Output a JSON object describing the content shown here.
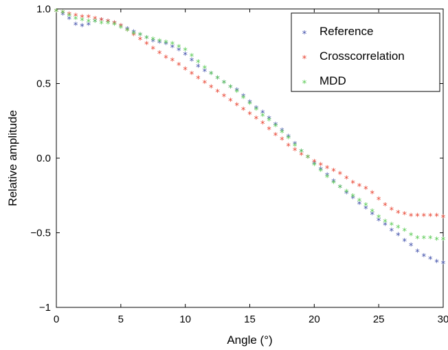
{
  "chart_data": {
    "type": "scatter",
    "title": "",
    "xlabel": "Angle (°)",
    "ylabel": "Relative amplitude",
    "xlim": [
      0,
      30
    ],
    "ylim": [
      -1,
      1
    ],
    "xticks": [
      0,
      5,
      10,
      15,
      20,
      25,
      30
    ],
    "yticks": [
      1.0,
      0.5,
      0.0,
      -0.5,
      -1
    ],
    "xtick_labels": [
      "0",
      "5",
      "10",
      "15",
      "20",
      "25",
      "30"
    ],
    "ytick_labels": [
      "1.0",
      "0.5",
      "0.0",
      "−0.5",
      "−1"
    ],
    "grid": false,
    "legend_position": "top-right",
    "marker": "*",
    "series": [
      {
        "name": "Reference",
        "color": "#3b4ba8",
        "points": [
          [
            0,
            1.0
          ],
          [
            0.5,
            0.98
          ],
          [
            1,
            0.95
          ],
          [
            1.5,
            0.91
          ],
          [
            2,
            0.9
          ],
          [
            2.5,
            0.91
          ],
          [
            3,
            0.93
          ],
          [
            3.5,
            0.94
          ],
          [
            4,
            0.93
          ],
          [
            4.5,
            0.92
          ],
          [
            5,
            0.9
          ],
          [
            5.5,
            0.88
          ],
          [
            6,
            0.86
          ],
          [
            6.5,
            0.84
          ],
          [
            7,
            0.82
          ],
          [
            7.5,
            0.8
          ],
          [
            8,
            0.79
          ],
          [
            8.5,
            0.78
          ],
          [
            9,
            0.76
          ],
          [
            9.5,
            0.74
          ],
          [
            10,
            0.71
          ],
          [
            10.5,
            0.67
          ],
          [
            11,
            0.63
          ],
          [
            11.5,
            0.6
          ],
          [
            12,
            0.58
          ],
          [
            12.5,
            0.55
          ],
          [
            13,
            0.52
          ],
          [
            13.5,
            0.49
          ],
          [
            14,
            0.47
          ],
          [
            14.5,
            0.43
          ],
          [
            15,
            0.39
          ],
          [
            15.5,
            0.35
          ],
          [
            16,
            0.32
          ],
          [
            16.5,
            0.28
          ],
          [
            17,
            0.24
          ],
          [
            17.5,
            0.2
          ],
          [
            18,
            0.16
          ],
          [
            18.5,
            0.11
          ],
          [
            19,
            0.06
          ],
          [
            19.5,
            0.02
          ],
          [
            20,
            -0.02
          ],
          [
            20.5,
            -0.06
          ],
          [
            21,
            -0.1
          ],
          [
            21.5,
            -0.14
          ],
          [
            22,
            -0.18
          ],
          [
            22.5,
            -0.22
          ],
          [
            23,
            -0.25
          ],
          [
            23.5,
            -0.29
          ],
          [
            24,
            -0.32
          ],
          [
            24.5,
            -0.36
          ],
          [
            25,
            -0.4
          ],
          [
            25.5,
            -0.43
          ],
          [
            26,
            -0.47
          ],
          [
            26.5,
            -0.5
          ],
          [
            27,
            -0.54
          ],
          [
            27.5,
            -0.57
          ],
          [
            28,
            -0.61
          ],
          [
            28.5,
            -0.64
          ],
          [
            29,
            -0.66
          ],
          [
            29.5,
            -0.68
          ],
          [
            30,
            -0.69
          ]
        ]
      },
      {
        "name": "Crosscorrelation",
        "color": "#e8412e",
        "points": [
          [
            0,
            1.0
          ],
          [
            0.5,
            0.99
          ],
          [
            1,
            0.98
          ],
          [
            1.5,
            0.97
          ],
          [
            2,
            0.96
          ],
          [
            2.5,
            0.96
          ],
          [
            3,
            0.95
          ],
          [
            3.5,
            0.94
          ],
          [
            4,
            0.93
          ],
          [
            4.5,
            0.92
          ],
          [
            5,
            0.9
          ],
          [
            5.5,
            0.87
          ],
          [
            6,
            0.84
          ],
          [
            6.5,
            0.81
          ],
          [
            7,
            0.78
          ],
          [
            7.5,
            0.75
          ],
          [
            8,
            0.72
          ],
          [
            8.5,
            0.69
          ],
          [
            9,
            0.67
          ],
          [
            9.5,
            0.64
          ],
          [
            10,
            0.61
          ],
          [
            10.5,
            0.58
          ],
          [
            11,
            0.55
          ],
          [
            11.5,
            0.52
          ],
          [
            12,
            0.49
          ],
          [
            12.5,
            0.46
          ],
          [
            13,
            0.43
          ],
          [
            13.5,
            0.4
          ],
          [
            14,
            0.37
          ],
          [
            14.5,
            0.34
          ],
          [
            15,
            0.31
          ],
          [
            15.5,
            0.28
          ],
          [
            16,
            0.25
          ],
          [
            16.5,
            0.21
          ],
          [
            17,
            0.17
          ],
          [
            17.5,
            0.14
          ],
          [
            18,
            0.1
          ],
          [
            18.5,
            0.07
          ],
          [
            19,
            0.04
          ],
          [
            19.5,
            0.02
          ],
          [
            20,
            -0.01
          ],
          [
            20.5,
            -0.03
          ],
          [
            21,
            -0.05
          ],
          [
            21.5,
            -0.07
          ],
          [
            22,
            -0.09
          ],
          [
            22.5,
            -0.12
          ],
          [
            23,
            -0.15
          ],
          [
            23.5,
            -0.17
          ],
          [
            24,
            -0.19
          ],
          [
            24.5,
            -0.22
          ],
          [
            25,
            -0.26
          ],
          [
            25.5,
            -0.3
          ],
          [
            26,
            -0.33
          ],
          [
            26.5,
            -0.35
          ],
          [
            27,
            -0.36
          ],
          [
            27.5,
            -0.37
          ],
          [
            28,
            -0.37
          ],
          [
            28.5,
            -0.37
          ],
          [
            29,
            -0.37
          ],
          [
            29.5,
            -0.37
          ],
          [
            30,
            -0.38
          ]
        ]
      },
      {
        "name": "MDD",
        "color": "#55c94f",
        "points": [
          [
            0,
            1.0
          ],
          [
            0.5,
            0.99
          ],
          [
            1,
            0.97
          ],
          [
            1.5,
            0.95
          ],
          [
            2,
            0.94
          ],
          [
            2.5,
            0.93
          ],
          [
            3,
            0.93
          ],
          [
            3.5,
            0.92
          ],
          [
            4,
            0.92
          ],
          [
            4.5,
            0.91
          ],
          [
            5,
            0.89
          ],
          [
            5.5,
            0.87
          ],
          [
            6,
            0.85
          ],
          [
            6.5,
            0.84
          ],
          [
            7,
            0.82
          ],
          [
            7.5,
            0.81
          ],
          [
            8,
            0.8
          ],
          [
            8.5,
            0.79
          ],
          [
            9,
            0.78
          ],
          [
            9.5,
            0.76
          ],
          [
            10,
            0.74
          ],
          [
            10.5,
            0.7
          ],
          [
            11,
            0.66
          ],
          [
            11.5,
            0.62
          ],
          [
            12,
            0.58
          ],
          [
            12.5,
            0.55
          ],
          [
            13,
            0.52
          ],
          [
            13.5,
            0.49
          ],
          [
            14,
            0.46
          ],
          [
            14.5,
            0.42
          ],
          [
            15,
            0.38
          ],
          [
            15.5,
            0.34
          ],
          [
            16,
            0.3
          ],
          [
            16.5,
            0.27
          ],
          [
            17,
            0.23
          ],
          [
            17.5,
            0.19
          ],
          [
            18,
            0.15
          ],
          [
            18.5,
            0.1
          ],
          [
            19,
            0.06
          ],
          [
            19.5,
            0.02
          ],
          [
            20,
            -0.03
          ],
          [
            20.5,
            -0.07
          ],
          [
            21,
            -0.11
          ],
          [
            21.5,
            -0.15
          ],
          [
            22,
            -0.18
          ],
          [
            22.5,
            -0.21
          ],
          [
            23,
            -0.24
          ],
          [
            23.5,
            -0.27
          ],
          [
            24,
            -0.3
          ],
          [
            24.5,
            -0.34
          ],
          [
            25,
            -0.38
          ],
          [
            25.5,
            -0.41
          ],
          [
            26,
            -0.43
          ],
          [
            26.5,
            -0.45
          ],
          [
            27,
            -0.47
          ],
          [
            27.5,
            -0.5
          ],
          [
            28,
            -0.52
          ],
          [
            28.5,
            -0.52
          ],
          [
            29,
            -0.52
          ],
          [
            29.5,
            -0.53
          ],
          [
            30,
            -0.53
          ]
        ]
      }
    ]
  }
}
